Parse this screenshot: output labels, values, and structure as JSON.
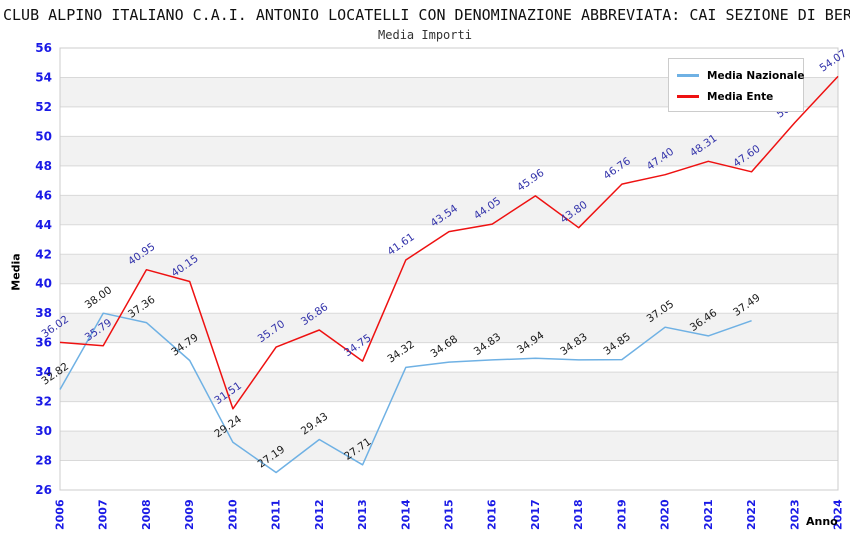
{
  "chart_data": {
    "type": "line",
    "title": "CLUB ALPINO ITALIANO C.A.I. ANTONIO LOCATELLI CON DENOMINAZIONE ABBREVIATA: CAI SEZIONE DI BER",
    "subtitle": "Media Importi",
    "xlabel": "Anno",
    "ylabel": "Media",
    "ylim": [
      26,
      56
    ],
    "ytick_step": 2,
    "grid": "horizontal",
    "legend_position": "top-right",
    "band_colors": [
      "#ffffff",
      "#f2f2f2"
    ],
    "gridline_color": "#d9d9d9",
    "border_color": "#cccccc",
    "tick_label_color": "#1a1ae6",
    "categories": [
      "2006",
      "2007",
      "2008",
      "2009",
      "2010",
      "2011",
      "2012",
      "2013",
      "2014",
      "2015",
      "2016",
      "2017",
      "2018",
      "2019",
      "2020",
      "2021",
      "2022",
      "2023",
      "2024"
    ],
    "series": [
      {
        "name": "Media Nazionale",
        "color": "#6fb1e4",
        "label_color": "#1a1a1a",
        "values": [
          32.82,
          38.0,
          37.36,
          34.79,
          29.24,
          27.19,
          29.43,
          27.71,
          34.32,
          34.68,
          34.83,
          34.94,
          34.83,
          34.85,
          37.05,
          36.46,
          37.49,
          null,
          null
        ]
      },
      {
        "name": "Media Ente",
        "color": "#ee1111",
        "label_color": "#3333aa",
        "values": [
          36.02,
          35.79,
          40.95,
          40.15,
          31.51,
          35.7,
          36.86,
          34.75,
          41.61,
          43.54,
          44.05,
          45.96,
          43.8,
          46.76,
          47.4,
          48.31,
          47.6,
          50.94,
          54.07
        ]
      }
    ]
  }
}
